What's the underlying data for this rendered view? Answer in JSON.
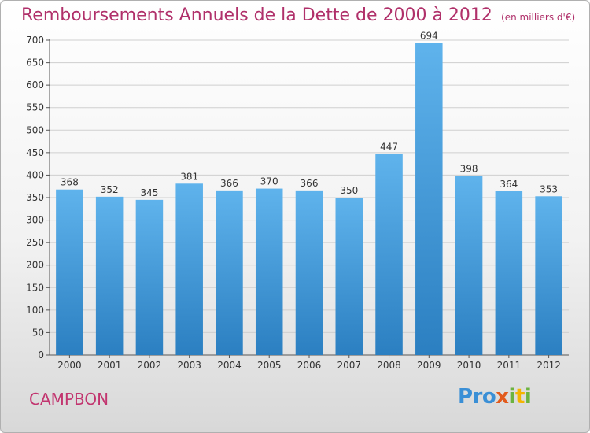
{
  "header": {
    "title": "Remboursements Annuels de la Dette de 2000 à 2012",
    "unit": "(en milliers d'€)"
  },
  "footer": {
    "town": "CAMPBON",
    "logo": "Proxiti"
  },
  "chart_data": {
    "type": "bar",
    "title": "Remboursements Annuels de la Dette de 2000 à 2012",
    "subtitle": "(en milliers d'€)",
    "categories": [
      "2000",
      "2001",
      "2002",
      "2003",
      "2004",
      "2005",
      "2006",
      "2007",
      "2008",
      "2009",
      "2010",
      "2011",
      "2012"
    ],
    "values": [
      368,
      352,
      345,
      381,
      366,
      370,
      366,
      350,
      447,
      694,
      398,
      364,
      353
    ],
    "ylim": [
      0,
      700
    ],
    "yticks": [
      0,
      50,
      100,
      150,
      200,
      250,
      300,
      350,
      400,
      450,
      500,
      550,
      600,
      650,
      700
    ],
    "grid": true,
    "bar_color": "#4a9ee0",
    "title_color": "#b0306a"
  }
}
